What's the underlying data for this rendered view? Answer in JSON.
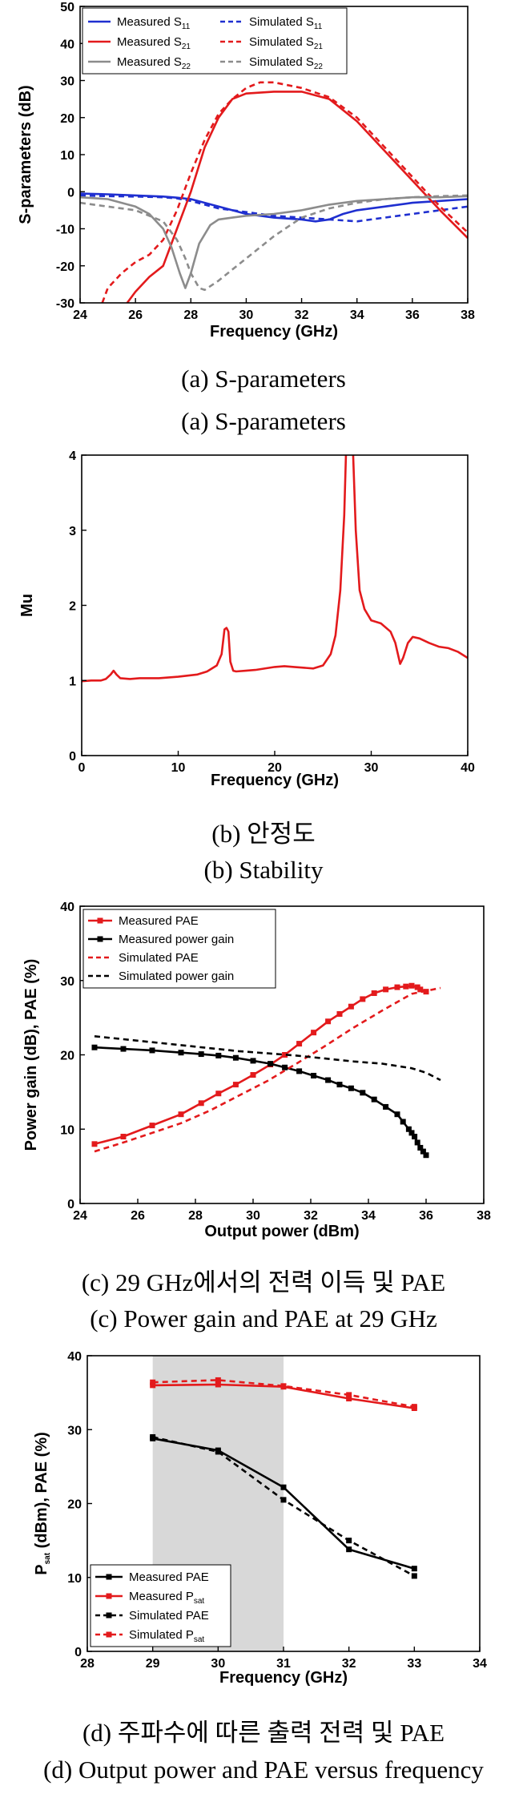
{
  "chart_data": [
    {
      "id": "a",
      "type": "line",
      "xlabel": "Frequency (GHz)",
      "ylabel": "S-parameters (dB)",
      "xlim": [
        24,
        38
      ],
      "ylim": [
        -30,
        50
      ],
      "xticks": [
        "24",
        "26",
        "28",
        "30",
        "32",
        "34",
        "36",
        "38"
      ],
      "yticks": [
        "-30",
        "-20",
        "-10",
        "0",
        "10",
        "20",
        "30",
        "40",
        "50"
      ],
      "legend": "top-left",
      "series": [
        {
          "name": "Measured S11",
          "label_main": "Measured S",
          "label_sub": "11",
          "color": "#1f2fd0",
          "dash": false,
          "x": [
            24,
            25,
            26,
            27,
            27.5,
            28,
            28.5,
            29,
            29.5,
            30,
            31,
            32,
            32.5,
            33,
            33.5,
            34,
            35,
            36,
            37,
            38
          ],
          "y": [
            -0.5,
            -0.7,
            -1,
            -1.3,
            -1.6,
            -2,
            -3,
            -4,
            -5,
            -6,
            -7,
            -7.5,
            -8,
            -7.5,
            -6,
            -5,
            -4,
            -3,
            -2.5,
            -2
          ]
        },
        {
          "name": "Simulated S11",
          "label_main": "Simulated S",
          "label_sub": "11",
          "color": "#1f2fd0",
          "dash": true,
          "x": [
            24,
            25,
            26,
            27,
            27.5,
            28,
            28.5,
            29,
            30,
            31,
            32,
            33,
            34,
            35,
            36,
            37,
            38
          ],
          "y": [
            -1,
            -1.2,
            -1.3,
            -1.5,
            -1.8,
            -2.5,
            -3.5,
            -4.5,
            -5.5,
            -6.5,
            -7,
            -7.5,
            -8,
            -7,
            -6,
            -5,
            -4
          ]
        },
        {
          "name": "Measured S21",
          "label_main": "Measured S",
          "label_sub": "21",
          "color": "#e31a1c",
          "dash": false,
          "x": [
            25.7,
            26,
            26.5,
            27,
            27.5,
            28,
            28.5,
            29,
            29.5,
            30,
            31,
            32,
            33,
            34,
            35,
            36,
            37,
            38
          ],
          "y": [
            -30,
            -27,
            -23,
            -20,
            -10,
            0,
            12,
            20,
            25,
            26.5,
            27,
            27,
            25,
            19,
            11,
            3,
            -5,
            -12.5
          ]
        },
        {
          "name": "Simulated S21",
          "label_main": "Simulated S",
          "label_sub": "21",
          "color": "#e31a1c",
          "dash": true,
          "x": [
            24.8,
            25,
            25.5,
            26,
            26.5,
            27,
            27.5,
            28,
            28.5,
            29,
            29.5,
            30,
            30.5,
            31,
            32,
            33,
            34,
            35,
            36,
            37,
            38
          ],
          "y": [
            -30,
            -26,
            -22,
            -19,
            -17,
            -13,
            -5,
            5,
            14,
            21,
            25,
            28,
            29.5,
            29.5,
            28,
            25.5,
            20,
            12,
            4,
            -4,
            -11
          ]
        },
        {
          "name": "Measured S22",
          "label_main": "Measured S",
          "label_sub": "22",
          "color": "#8c8c8c",
          "dash": false,
          "x": [
            24,
            25,
            26,
            26.5,
            27,
            27.3,
            27.6,
            27.8,
            28,
            28.3,
            28.7,
            29,
            29.5,
            30,
            31,
            32,
            33,
            34,
            35,
            36,
            37,
            38
          ],
          "y": [
            -1.5,
            -2,
            -4,
            -6,
            -10,
            -15,
            -22,
            -26,
            -22,
            -14,
            -9,
            -7.5,
            -7,
            -6.5,
            -6,
            -5,
            -3.5,
            -2.5,
            -2,
            -1.5,
            -1.5,
            -1.2
          ]
        },
        {
          "name": "Simulated S22",
          "label_main": "Simulated S",
          "label_sub": "22",
          "color": "#8c8c8c",
          "dash": true,
          "x": [
            24,
            25,
            26,
            27,
            27.5,
            27.8,
            28,
            28.3,
            28.5,
            29,
            29.5,
            30,
            31,
            32,
            33,
            34,
            35,
            36,
            37,
            38
          ],
          "y": [
            -3,
            -4,
            -5,
            -8,
            -13,
            -18,
            -22,
            -26,
            -26.5,
            -24,
            -21,
            -18,
            -12,
            -7,
            -4.5,
            -3,
            -2,
            -1.5,
            -1.2,
            -1
          ]
        }
      ]
    },
    {
      "id": "b",
      "type": "line",
      "xlabel": "Frequency (GHz)",
      "ylabel": "Mu",
      "xlim": [
        0,
        40
      ],
      "ylim": [
        0,
        4
      ],
      "xticks": [
        "0",
        "10",
        "20",
        "30",
        "40"
      ],
      "yticks": [
        "0",
        "1",
        "2",
        "3",
        "4"
      ],
      "series": [
        {
          "name": "Mu",
          "color": "#e31a1c",
          "dash": false,
          "x": [
            0,
            1,
            2,
            2.5,
            3,
            3.3,
            3.6,
            4,
            5,
            6,
            8,
            10,
            12,
            13,
            14,
            14.5,
            14.8,
            15,
            15.2,
            15.4,
            15.7,
            16,
            17,
            18,
            20,
            21,
            22,
            24,
            25,
            25.8,
            26.3,
            26.8,
            27.2,
            27.4,
            27.6,
            27.9,
            28.1,
            28.4,
            28.8,
            29.3,
            30,
            31,
            32,
            32.5,
            33,
            33.3,
            33.8,
            34.3,
            35,
            36,
            37,
            38,
            39,
            40
          ],
          "y": [
            0.99,
            1,
            1,
            1.02,
            1.08,
            1.13,
            1.08,
            1.03,
            1.02,
            1.03,
            1.03,
            1.05,
            1.08,
            1.12,
            1.2,
            1.35,
            1.68,
            1.7,
            1.65,
            1.25,
            1.13,
            1.12,
            1.13,
            1.14,
            1.18,
            1.19,
            1.18,
            1.16,
            1.2,
            1.35,
            1.6,
            2.2,
            3.2,
            4.1,
            4.1,
            4.1,
            4.1,
            3.0,
            2.2,
            1.95,
            1.8,
            1.76,
            1.65,
            1.5,
            1.22,
            1.3,
            1.5,
            1.58,
            1.56,
            1.5,
            1.45,
            1.43,
            1.38,
            1.3
          ]
        }
      ]
    },
    {
      "id": "c",
      "type": "line",
      "xlabel": "Output power (dBm)",
      "ylabel": "Power gain (dB), PAE (%)",
      "xlim": [
        24,
        38
      ],
      "ylim": [
        0,
        40
      ],
      "xticks": [
        "24",
        "26",
        "28",
        "30",
        "32",
        "34",
        "36",
        "38"
      ],
      "yticks": [
        "0",
        "10",
        "20",
        "30",
        "40"
      ],
      "legend": "top-left",
      "series": [
        {
          "name": "Measured PAE",
          "color": "#e31a1c",
          "dash": false,
          "markers": true,
          "x": [
            24.5,
            25.5,
            26.5,
            27.5,
            28.2,
            28.8,
            29.4,
            30,
            30.6,
            31.1,
            31.6,
            32.1,
            32.6,
            33,
            33.4,
            33.8,
            34.2,
            34.6,
            35,
            35.3,
            35.5,
            35.7,
            35.8,
            36
          ],
          "y": [
            8,
            9,
            10.5,
            12,
            13.5,
            14.8,
            16,
            17.3,
            18.7,
            20,
            21.5,
            23,
            24.5,
            25.5,
            26.5,
            27.5,
            28.3,
            28.8,
            29.1,
            29.2,
            29.3,
            29.1,
            28.8,
            28.5
          ]
        },
        {
          "name": "Measured power gain",
          "color": "#000000",
          "dash": false,
          "markers": true,
          "x": [
            24.5,
            25.5,
            26.5,
            27.5,
            28.2,
            28.8,
            29.4,
            30,
            30.6,
            31.1,
            31.6,
            32.1,
            32.6,
            33,
            33.4,
            33.8,
            34.2,
            34.6,
            35,
            35.2,
            35.4,
            35.5,
            35.6,
            35.7,
            35.8,
            35.9,
            36
          ],
          "y": [
            21,
            20.8,
            20.6,
            20.3,
            20.1,
            19.9,
            19.6,
            19.2,
            18.8,
            18.3,
            17.8,
            17.2,
            16.6,
            16,
            15.5,
            14.9,
            14,
            13,
            12,
            11,
            10,
            9.5,
            9,
            8.2,
            7.5,
            7,
            6.5
          ]
        },
        {
          "name": "Simulated PAE",
          "color": "#e31a1c",
          "dash": true,
          "markers": false,
          "x": [
            24.5,
            25.5,
            26.5,
            27.5,
            28.5,
            29.5,
            30.5,
            31.5,
            32.5,
            33.5,
            34.5,
            35.5,
            36.5
          ],
          "y": [
            7,
            8.2,
            9.5,
            10.8,
            12.5,
            14.5,
            16.5,
            18.8,
            21.2,
            23.7,
            26,
            28.2,
            29
          ]
        },
        {
          "name": "Simulated power gain",
          "color": "#000000",
          "dash": true,
          "markers": false,
          "x": [
            24.5,
            25.5,
            26.5,
            27.5,
            28.5,
            29.5,
            30.5,
            31.5,
            32.5,
            33.5,
            34.5,
            35.5,
            36,
            36.5
          ],
          "y": [
            22.5,
            22.1,
            21.7,
            21.3,
            20.9,
            20.5,
            20.2,
            19.9,
            19.5,
            19.1,
            18.8,
            18.2,
            17.6,
            16.6
          ]
        }
      ]
    },
    {
      "id": "d",
      "type": "line",
      "xlabel": "Frequency (GHz)",
      "ylabel_main": "P",
      "ylabel_sub": "sat",
      "ylabel_rest": " (dBm), PAE (%)",
      "xlim": [
        28,
        34
      ],
      "ylim": [
        0,
        40
      ],
      "xticks": [
        "28",
        "29",
        "30",
        "31",
        "32",
        "33",
        "34"
      ],
      "yticks": [
        "0",
        "10",
        "20",
        "30",
        "40"
      ],
      "shaded_x": [
        29,
        31
      ],
      "legend": "bottom-left",
      "series": [
        {
          "name": "Measured PAE",
          "label_main": "Measured PAE",
          "label_sub": "",
          "color": "#000000",
          "dash": false,
          "markers": true,
          "x": [
            29,
            30,
            31,
            32,
            33
          ],
          "y": [
            28.8,
            27.2,
            22.2,
            13.8,
            11.2
          ]
        },
        {
          "name": "Measured Psat",
          "label_main": "Measured P",
          "label_sub": "sat",
          "color": "#e31a1c",
          "dash": false,
          "markers": true,
          "x": [
            29,
            30,
            31,
            32,
            33
          ],
          "y": [
            36,
            36.1,
            35.8,
            34.2,
            32.9
          ]
        },
        {
          "name": "Simulated PAE",
          "label_main": "Simulated PAE",
          "label_sub": "",
          "color": "#000000",
          "dash": true,
          "markers": true,
          "x": [
            29,
            30,
            31,
            32,
            33
          ],
          "y": [
            29,
            27,
            20.5,
            15,
            10.2
          ]
        },
        {
          "name": "Simulated Psat",
          "label_main": "Simulated P",
          "label_sub": "sat",
          "color": "#e31a1c",
          "dash": true,
          "markers": true,
          "x": [
            29,
            30,
            31,
            32,
            33
          ],
          "y": [
            36.4,
            36.7,
            35.9,
            34.7,
            33.1
          ]
        }
      ]
    }
  ],
  "captions": {
    "a1": "(a)  S-parameters",
    "a2": "(a)  S-parameters",
    "b1": "(b)  안정도",
    "b2": "(b)  Stability",
    "c1": "(c)  29 GHz에서의 전력 이득 및 PAE",
    "c2": "(c)  Power gain and PAE at 29 GHz",
    "d1": "(d)  주파수에 따른 출력 전력 및 PAE",
    "d2": "(d)  Output power and PAE versus frequency"
  }
}
